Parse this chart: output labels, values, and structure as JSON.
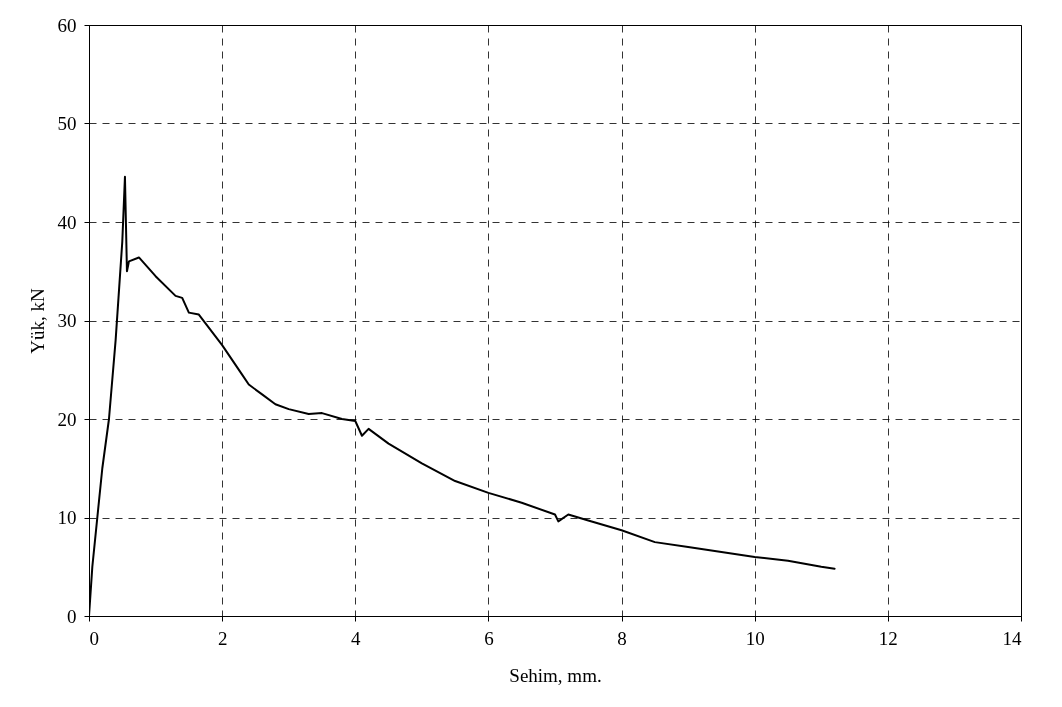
{
  "chart_data": {
    "type": "line",
    "xlabel": "Sehim, mm.",
    "ylabel": "Yük, kN",
    "x": [
      0,
      0.05,
      0.2,
      0.3,
      0.4,
      0.5,
      0.54,
      0.57,
      0.6,
      0.75,
      1.0,
      1.3,
      1.4,
      1.5,
      1.65,
      2.0,
      2.3,
      2.4,
      2.6,
      2.8,
      3.0,
      3.3,
      3.5,
      3.8,
      4.0,
      4.1,
      4.2,
      4.5,
      5.0,
      5.5,
      6.0,
      6.5,
      7.0,
      7.05,
      7.2,
      7.5,
      8.0,
      8.5,
      9.0,
      9.5,
      10.0,
      10.5,
      11.0,
      11.2
    ],
    "series": [
      {
        "color": "#000000",
        "values": [
          0,
          5,
          15,
          20,
          28,
          38,
          44.6,
          35,
          36,
          36.4,
          34.5,
          32.5,
          32.3,
          30.8,
          30.6,
          27.5,
          24.5,
          23.5,
          22.5,
          21.5,
          21,
          20.5,
          20.6,
          20,
          19.8,
          18.3,
          19,
          17.5,
          15.5,
          13.7,
          12.5,
          11.5,
          10.3,
          9.6,
          10.3,
          9.7,
          8.7,
          7.5,
          7,
          6.5,
          6,
          5.6,
          5,
          4.8
        ]
      }
    ],
    "xlim": [
      0,
      14
    ],
    "xticks": [
      0,
      2,
      4,
      6,
      8,
      10,
      12,
      14
    ],
    "ylim": [
      0,
      60
    ],
    "yticks": [
      0,
      10,
      20,
      30,
      40,
      50,
      60
    ],
    "grid": true,
    "line_style": "solid",
    "marker": "none"
  }
}
